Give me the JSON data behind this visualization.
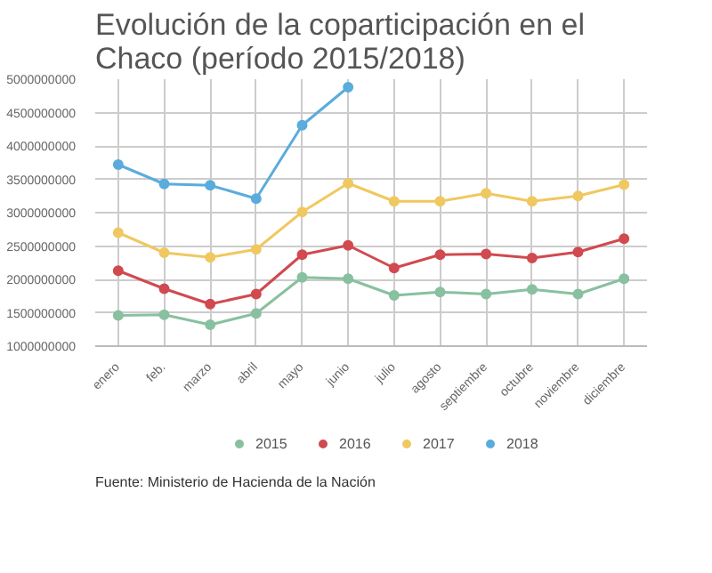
{
  "chart_data": {
    "type": "line",
    "title": "Evolución de la coparticipación en el Chaco (período 2015/2018)",
    "categories": [
      "enero",
      "feb.",
      "marzo",
      "abril",
      "mayo",
      "junio",
      "julio",
      "agosto",
      "septiembre",
      "octubre",
      "noviembre",
      "diciembre"
    ],
    "series": [
      {
        "name": "2015",
        "color": "#88c0a0",
        "values": [
          1460000000,
          1470000000,
          1320000000,
          1490000000,
          2030000000,
          2010000000,
          1760000000,
          1810000000,
          1780000000,
          1850000000,
          1780000000,
          2010000000
        ]
      },
      {
        "name": "2016",
        "color": "#d04a50",
        "values": [
          2130000000,
          1860000000,
          1630000000,
          1780000000,
          2370000000,
          2510000000,
          2170000000,
          2370000000,
          2380000000,
          2320000000,
          2410000000,
          2610000000
        ]
      },
      {
        "name": "2017",
        "color": "#f0c860",
        "values": [
          2700000000,
          2400000000,
          2330000000,
          2450000000,
          3010000000,
          3440000000,
          3170000000,
          3170000000,
          3290000000,
          3170000000,
          3250000000,
          3420000000
        ]
      },
      {
        "name": "2018",
        "color": "#5aacdc",
        "values": [
          3720000000,
          3430000000,
          3410000000,
          3210000000,
          4310000000,
          4880000000,
          null,
          null,
          null,
          null,
          null,
          null
        ]
      }
    ],
    "ylim": [
      1000000000,
      5000000000
    ],
    "yticks": [
      1000000000,
      1500000000,
      2000000000,
      2500000000,
      3000000000,
      3500000000,
      4000000000,
      4500000000,
      5000000000
    ],
    "grid": true,
    "legend": "bottom",
    "marker": "circle",
    "line_style": "solid",
    "annotations": [
      "Fuente: Ministerio de Hacienda de la Nación"
    ]
  }
}
